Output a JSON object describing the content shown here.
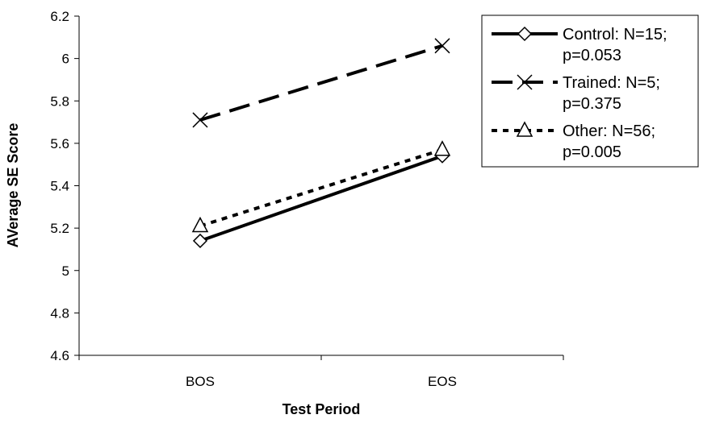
{
  "chart_data": {
    "type": "line",
    "categories": [
      "BOS",
      "EOS"
    ],
    "xlabel": "Test Period",
    "ylabel": "AVerage SE Score",
    "ylim": [
      4.6,
      6.2
    ],
    "yticks": [
      "4.6",
      "4.8",
      "5",
      "5.2",
      "5.4",
      "5.6",
      "5.8",
      "6",
      "6.2"
    ],
    "grid": false,
    "legend_position": "top-right",
    "series": [
      {
        "name": "Control: N=15;",
        "name_line2": "p=0.053",
        "values": [
          5.14,
          5.54
        ],
        "marker": "diamond",
        "line_style": "solid"
      },
      {
        "name": "Trained: N=5;",
        "name_line2": "p=0.375",
        "values": [
          5.71,
          6.06
        ],
        "marker": "x",
        "line_style": "dashed"
      },
      {
        "name": "Other: N=56;",
        "name_line2": "p=0.005",
        "values": [
          5.21,
          5.57
        ],
        "marker": "triangle",
        "line_style": "dotted"
      }
    ]
  }
}
